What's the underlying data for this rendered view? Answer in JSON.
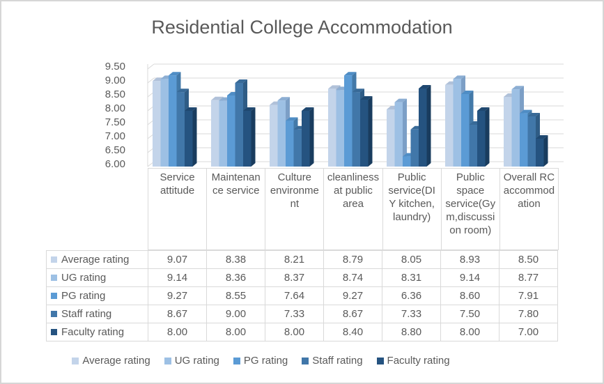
{
  "frame": {
    "bg": "#ffffff",
    "border_color": "#d6d6d6"
  },
  "chart_data": {
    "type": "bar",
    "style": "3d-clustered-column",
    "title": "Residential College Accommodation",
    "categories": [
      "Service attitude",
      "Maintenance service",
      "Culture environment",
      "cleanliness at public area",
      "Public service(DIY kitchen, laundry)",
      "Public space service(Gym,discussion room)",
      "Overall RC accommodation"
    ],
    "series": [
      {
        "name": "Average rating",
        "color": "#c3d4ea",
        "color_top": "#b0c1d9",
        "color_side": "#9db2ce",
        "values": [
          9.07,
          8.38,
          8.21,
          8.79,
          8.05,
          8.93,
          8.5
        ]
      },
      {
        "name": "UG rating",
        "color": "#9dc0e4",
        "color_top": "#8caed3",
        "color_side": "#7c9fc6",
        "values": [
          9.14,
          8.36,
          8.37,
          8.74,
          8.31,
          9.14,
          8.77
        ]
      },
      {
        "name": "PG rating",
        "color": "#5b9bd5",
        "color_top": "#4f8dc5",
        "color_side": "#4379a8",
        "values": [
          9.27,
          8.55,
          7.64,
          9.27,
          6.36,
          8.6,
          7.91
        ]
      },
      {
        "name": "Staff rating",
        "color": "#4177a9",
        "color_top": "#386a98",
        "color_side": "#2f5c85",
        "values": [
          8.67,
          9.0,
          7.33,
          8.67,
          7.33,
          7.5,
          7.8
        ]
      },
      {
        "name": "Faculty rating",
        "color": "#255380",
        "color_top": "#1f4870",
        "color_side": "#193c5e",
        "values": [
          8.0,
          8.0,
          8.0,
          8.4,
          8.8,
          8.0,
          7.0
        ]
      }
    ],
    "ylim": [
      6.0,
      9.5
    ],
    "ytick_step": 0.5,
    "yticks": [
      "9.50",
      "9.00",
      "8.50",
      "8.00",
      "7.50",
      "7.00",
      "6.50",
      "6.00"
    ],
    "value_format": "0.00",
    "grid": true,
    "gridline_color": "#d9d9d9",
    "axis_text_color": "#595959",
    "legend_position": "bottom",
    "show_data_table": true
  }
}
